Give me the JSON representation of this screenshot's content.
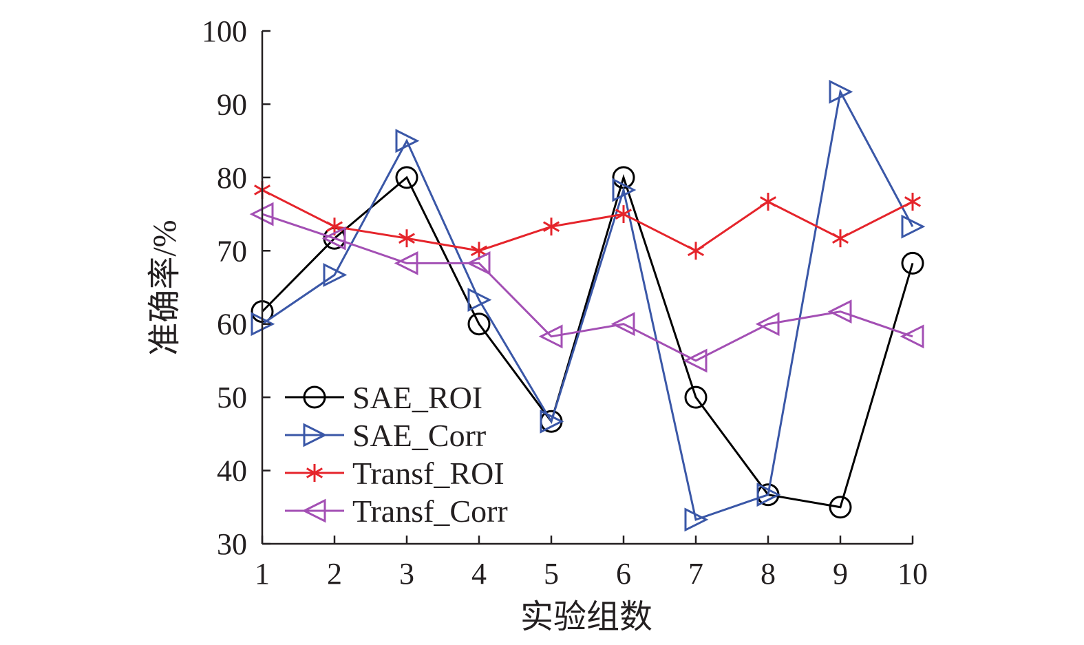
{
  "chart_data": {
    "type": "line",
    "title": "",
    "xlabel": "实验组数",
    "ylabel": "准确率/%",
    "x": [
      1,
      2,
      3,
      4,
      5,
      6,
      7,
      8,
      9,
      10
    ],
    "x_tick_labels": [
      "1",
      "2",
      "3",
      "4",
      "5",
      "6",
      "7",
      "8",
      "9",
      "10"
    ],
    "y_tick_labels": [
      "30",
      "40",
      "50",
      "60",
      "70",
      "80",
      "90",
      "100"
    ],
    "xlim": [
      1,
      10
    ],
    "ylim": [
      30,
      100
    ],
    "grid": false,
    "legend_position": "lower-left",
    "series": [
      {
        "name": "SAE_ROI",
        "marker": "circle",
        "color": "#000000",
        "values": [
          61.7,
          71.7,
          80.0,
          60.0,
          46.7,
          80.0,
          50.0,
          36.7,
          35.0,
          68.3
        ]
      },
      {
        "name": "SAE_Corr",
        "marker": "triangle-right",
        "color": "#3a57a7",
        "values": [
          60.0,
          66.7,
          85.0,
          63.3,
          46.7,
          78.3,
          33.3,
          36.7,
          91.7,
          73.3
        ]
      },
      {
        "name": "Transf_ROI",
        "marker": "asterisk",
        "color": "#e5242b",
        "values": [
          78.3,
          73.3,
          71.7,
          70.0,
          73.3,
          75.0,
          70.0,
          76.7,
          71.7,
          76.7
        ]
      },
      {
        "name": "Transf_Corr",
        "marker": "triangle-left",
        "color": "#a34fb4",
        "values": [
          75.0,
          71.7,
          68.3,
          68.3,
          58.3,
          60.0,
          55.0,
          60.0,
          61.7,
          58.3
        ]
      }
    ]
  }
}
